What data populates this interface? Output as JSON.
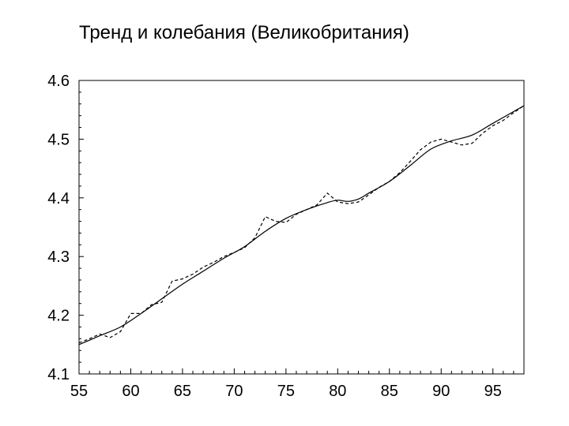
{
  "chart_data": {
    "type": "line",
    "title": "Тренд и колебания (Великобритания)",
    "xlabel": "",
    "ylabel": "",
    "xlim": [
      55,
      98
    ],
    "ylim": [
      4.1,
      4.6
    ],
    "x_ticks": [
      "55",
      "60",
      "65",
      "70",
      "75",
      "80",
      "85",
      "90",
      "95"
    ],
    "x_tick_values": [
      55,
      60,
      65,
      70,
      75,
      80,
      85,
      90,
      95
    ],
    "y_ticks": [
      "4.1",
      "4.2",
      "4.3",
      "4.4",
      "4.5",
      "4.6"
    ],
    "y_tick_values": [
      4.1,
      4.2,
      4.3,
      4.4,
      4.5,
      4.6
    ],
    "grid": false,
    "legend": "none",
    "series": [
      {
        "style": "solid",
        "color": "#000000",
        "points": [
          [
            55,
            4.15
          ],
          [
            57,
            4.165
          ],
          [
            59,
            4.18
          ],
          [
            61,
            4.203
          ],
          [
            63,
            4.228
          ],
          [
            65,
            4.253
          ],
          [
            67,
            4.275
          ],
          [
            69,
            4.297
          ],
          [
            71,
            4.317
          ],
          [
            73,
            4.343
          ],
          [
            75,
            4.365
          ],
          [
            77,
            4.38
          ],
          [
            79,
            4.392
          ],
          [
            80,
            4.396
          ],
          [
            81,
            4.394
          ],
          [
            82,
            4.398
          ],
          [
            83,
            4.408
          ],
          [
            85,
            4.428
          ],
          [
            87,
            4.455
          ],
          [
            89,
            4.483
          ],
          [
            91,
            4.497
          ],
          [
            93,
            4.507
          ],
          [
            95,
            4.527
          ],
          [
            98,
            4.557
          ]
        ]
      },
      {
        "style": "dashed",
        "color": "#000000",
        "points": [
          [
            55,
            4.153
          ],
          [
            56,
            4.16
          ],
          [
            57,
            4.168
          ],
          [
            58,
            4.162
          ],
          [
            59,
            4.172
          ],
          [
            60,
            4.203
          ],
          [
            61,
            4.203
          ],
          [
            62,
            4.218
          ],
          [
            63,
            4.222
          ],
          [
            64,
            4.258
          ],
          [
            65,
            4.262
          ],
          [
            66,
            4.27
          ],
          [
            67,
            4.282
          ],
          [
            68,
            4.29
          ],
          [
            69,
            4.3
          ],
          [
            70,
            4.307
          ],
          [
            71,
            4.315
          ],
          [
            72,
            4.332
          ],
          [
            73,
            4.368
          ],
          [
            74,
            4.36
          ],
          [
            75,
            4.358
          ],
          [
            76,
            4.372
          ],
          [
            77,
            4.38
          ],
          [
            78,
            4.388
          ],
          [
            79,
            4.408
          ],
          [
            80,
            4.393
          ],
          [
            81,
            4.39
          ],
          [
            82,
            4.393
          ],
          [
            83,
            4.405
          ],
          [
            84,
            4.418
          ],
          [
            85,
            4.428
          ],
          [
            86,
            4.443
          ],
          [
            87,
            4.462
          ],
          [
            88,
            4.482
          ],
          [
            89,
            4.495
          ],
          [
            90,
            4.5
          ],
          [
            91,
            4.495
          ],
          [
            92,
            4.49
          ],
          [
            93,
            4.493
          ],
          [
            94,
            4.51
          ],
          [
            95,
            4.523
          ],
          [
            96,
            4.532
          ],
          [
            97,
            4.545
          ],
          [
            98,
            4.557
          ]
        ]
      }
    ]
  }
}
